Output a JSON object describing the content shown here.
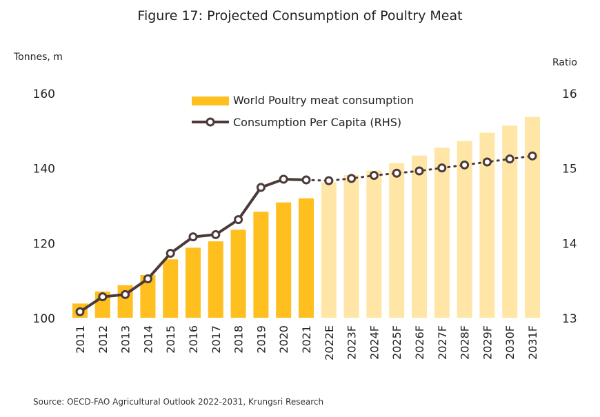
{
  "title": "Figure 17: Projected Consumption of Poultry Meat",
  "source": "Source: OECD-FAO Agricultural Outlook 2022-2031, Krungsri Research",
  "colors": {
    "bar_actual": "#FFBF1F",
    "bar_projected": "#FFE6A6",
    "line": "#4B3A39",
    "marker_fill": "#FFFFFF"
  },
  "chart_data": {
    "type": "bar",
    "title": "Figure 17: Projected Consumption of Poultry Meat",
    "ylabel": "Tonnes, m",
    "y2label": "Ratio",
    "ylim": [
      100,
      160
    ],
    "y2lim": [
      13,
      16
    ],
    "yticks": [
      100,
      120,
      140,
      160
    ],
    "y2ticks": [
      13,
      14,
      15,
      16
    ],
    "categories": [
      "2011",
      "2012",
      "2013",
      "2014",
      "2015",
      "2016",
      "2017",
      "2018",
      "2019",
      "2020",
      "2021",
      "2022E",
      "2023F",
      "2024F",
      "2025F",
      "2026F",
      "2027F",
      "2028F",
      "2029F",
      "2030F",
      "2031F"
    ],
    "projection_start_index": 11,
    "series": [
      {
        "name": "World Poultry meat consumption",
        "type": "bar",
        "axis": "left",
        "values": [
          103.8,
          107.0,
          108.7,
          111.4,
          115.6,
          118.7,
          120.4,
          123.5,
          128.3,
          130.8,
          131.9,
          136.2,
          138.1,
          139.3,
          141.3,
          143.3,
          145.4,
          147.2,
          149.4,
          151.3,
          153.6
        ]
      },
      {
        "name": "Consumption Per Capita (RHS)",
        "type": "line",
        "axis": "right",
        "values": [
          13.08,
          13.28,
          13.31,
          13.52,
          13.86,
          14.08,
          14.11,
          14.31,
          14.74,
          14.85,
          14.84,
          14.83,
          14.86,
          14.9,
          14.93,
          14.96,
          15.0,
          15.04,
          15.08,
          15.12,
          15.16
        ]
      }
    ],
    "legend_position": "top-center",
    "grid": false
  }
}
